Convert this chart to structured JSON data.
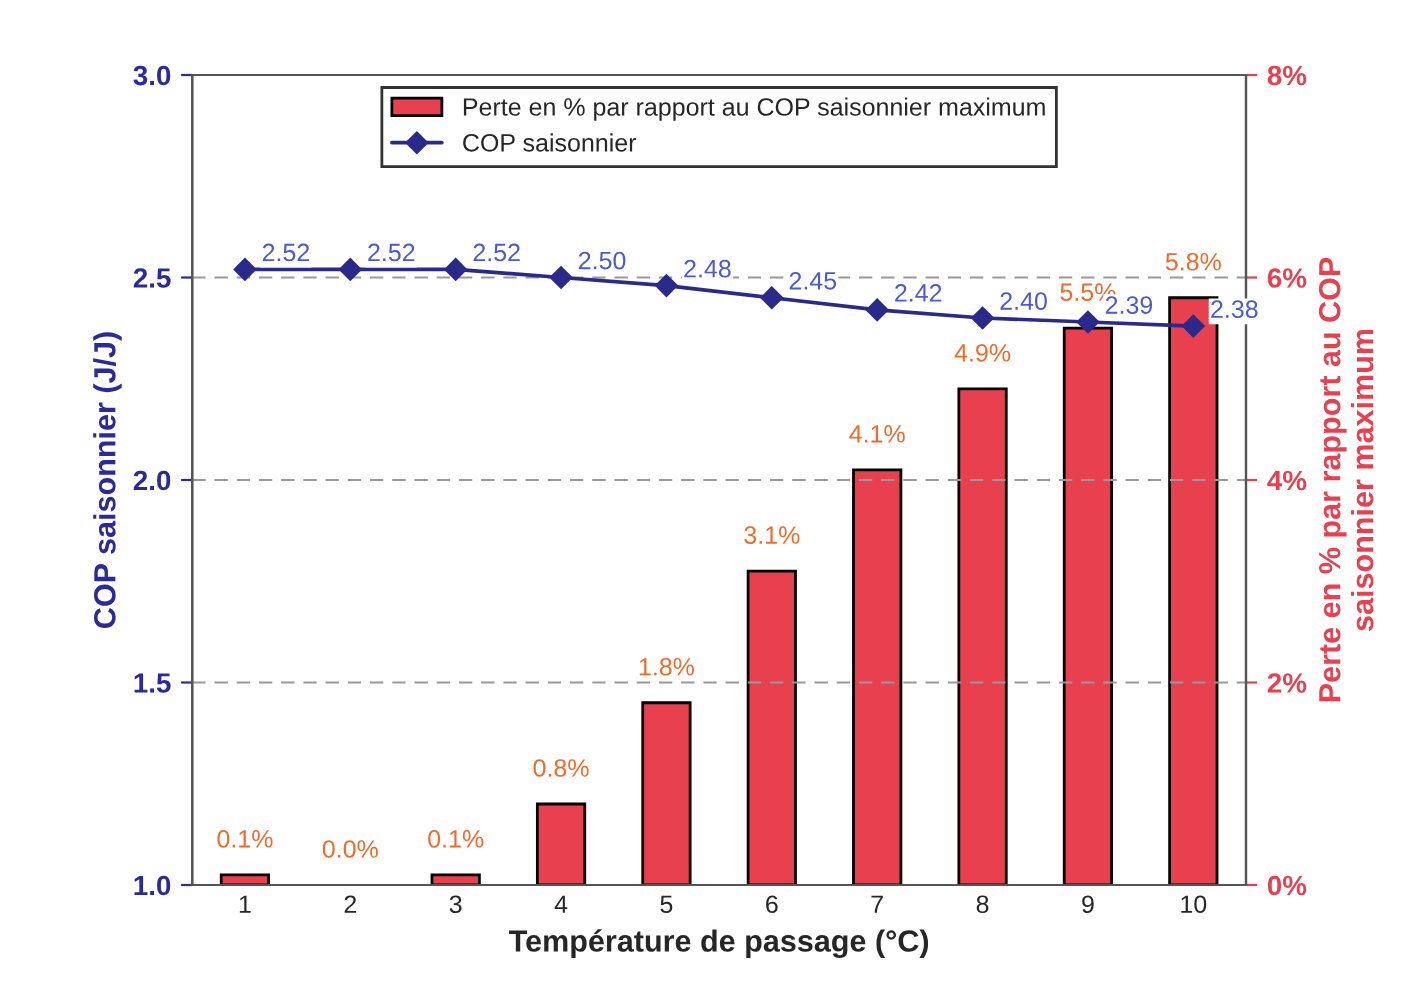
{
  "chart_data": {
    "type": "bar",
    "xlabel": "Température de passage (°C)",
    "ylabel": "COP saisonnier (J/J)",
    "y2label": "Perte en % par rapport au COP saisonnier maximum",
    "categories": [
      "1",
      "2",
      "3",
      "4",
      "5",
      "6",
      "7",
      "8",
      "9",
      "10"
    ],
    "series": [
      {
        "name": "Perte en % par rapport au COP saisonnier maximum",
        "axis": "y2",
        "color": "#e8404f",
        "values": [
          0.1,
          0.0,
          0.1,
          0.8,
          1.8,
          3.1,
          4.1,
          4.9,
          5.5,
          5.8
        ],
        "value_labels": [
          "0.1%",
          "0.0%",
          "0.1%",
          "0.8%",
          "1.8%",
          "3.1%",
          "4.1%",
          "4.9%",
          "5.5%",
          "5.8%"
        ]
      },
      {
        "name": "COP saisonnier",
        "type": "line",
        "axis": "y",
        "color": "#2a2a8a",
        "marker": "diamond",
        "values": [
          2.52,
          2.52,
          2.52,
          2.5,
          2.48,
          2.45,
          2.42,
          2.4,
          2.39,
          2.38
        ],
        "value_labels": [
          "2.52",
          "2.52",
          "2.52",
          "2.50",
          "2.48",
          "2.45",
          "2.42",
          "2.40",
          "2.39",
          "2.38"
        ]
      }
    ],
    "ylim": [
      1.0,
      3.0
    ],
    "yticks": [
      {
        "value": 1.0,
        "label": "1.0"
      },
      {
        "value": 1.5,
        "label": "1.5"
      },
      {
        "value": 2.0,
        "label": "2.0"
      },
      {
        "value": 2.5,
        "label": "2.5"
      },
      {
        "value": 3.0,
        "label": "3.0"
      }
    ],
    "y2lim": [
      0,
      8
    ],
    "y2ticks": [
      {
        "value": 0,
        "label": "0%"
      },
      {
        "value": 2,
        "label": "2%"
      },
      {
        "value": 4,
        "label": "4%"
      },
      {
        "value": 6,
        "label": "6%"
      },
      {
        "value": 8,
        "label": "8%"
      }
    ],
    "grid": "y",
    "legend": "top"
  }
}
